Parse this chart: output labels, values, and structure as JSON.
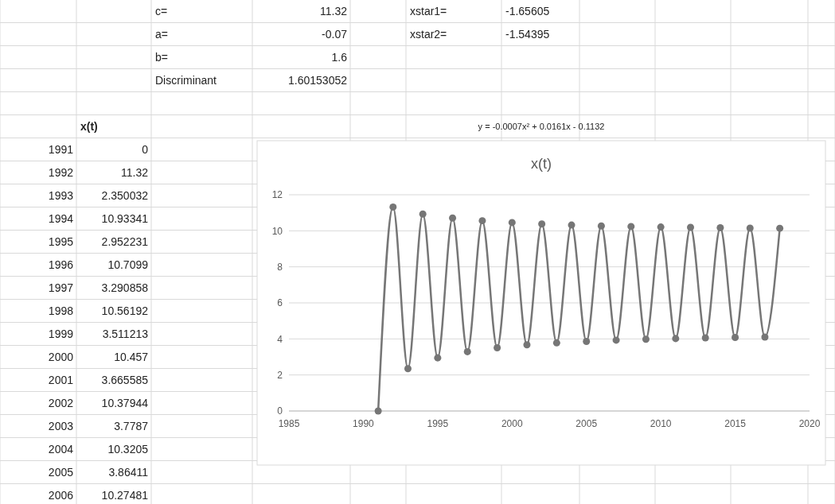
{
  "chart_data": {
    "type": "line",
    "title": "x(t)",
    "annotations": [
      "c=",
      "11.32",
      "a=",
      "-0.07",
      "b=",
      "1.6",
      "Discriminant",
      "1.60153052",
      "xstar1=",
      "-1.65605",
      "xstar2=",
      "-1.54395",
      "x(t)",
      "y = -0.0007x² + 0.0161x - 0.1132",
      "1991",
      "0",
      "1992",
      "11.32",
      "1993",
      "2.350032",
      "1994",
      "10.93341",
      "1995",
      "2.952231",
      "1996",
      "10.7099",
      "1997",
      "3.290858",
      "1998",
      "10.56192",
      "1999",
      "3.511213",
      "2000",
      "10.457",
      "2001",
      "3.665585",
      "2002",
      "10.37944",
      "2003",
      "3.7787",
      "2004",
      "10.3205",
      "2005",
      "3.86411",
      "2006",
      "10.27481"
    ],
    "x": [
      1991,
      1992,
      1993,
      1994,
      1995,
      1996,
      1997,
      1998,
      1999,
      2000,
      2001,
      2002,
      2003,
      2004,
      2005,
      2006,
      2007,
      2008,
      2009,
      2010,
      2011,
      2012,
      2013,
      2014,
      2015,
      2016,
      2017,
      2018
    ],
    "series": [
      {
        "color": "#767676",
        "values": [
          0,
          11.32,
          2.35,
          10.93,
          2.95,
          10.71,
          3.29,
          10.56,
          3.51,
          10.46,
          3.67,
          10.38,
          3.78,
          10.32,
          3.86,
          10.27,
          3.93,
          10.24,
          3.98,
          10.21,
          4.02,
          10.19,
          4.06,
          10.17,
          4.08,
          10.15,
          4.1,
          10.14
        ]
      }
    ],
    "xlim": [
      1985,
      2020
    ],
    "xticks": [
      1985,
      1990,
      1995,
      2000,
      2005,
      2010,
      2015,
      2020
    ],
    "ylim": [
      0,
      12
    ],
    "yticks": [
      0,
      2,
      4,
      6,
      8,
      10,
      12
    ],
    "grid": "y",
    "marker": "circle",
    "line_style": "solid"
  }
}
